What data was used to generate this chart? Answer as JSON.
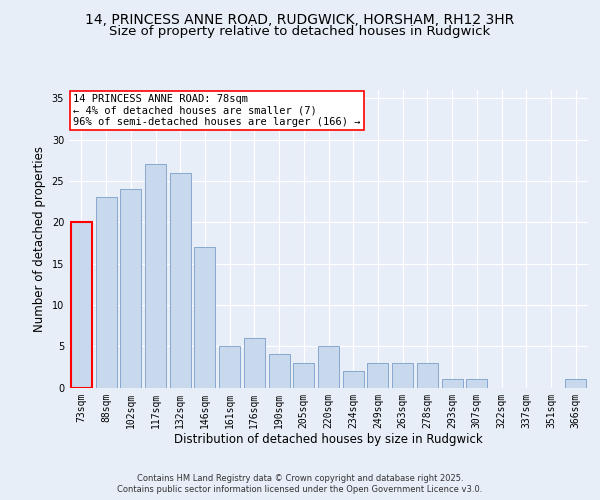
{
  "title_line1": "14, PRINCESS ANNE ROAD, RUDGWICK, HORSHAM, RH12 3HR",
  "title_line2": "Size of property relative to detached houses in Rudgwick",
  "xlabel": "Distribution of detached houses by size in Rudgwick",
  "ylabel": "Number of detached properties",
  "categories": [
    "73sqm",
    "88sqm",
    "102sqm",
    "117sqm",
    "132sqm",
    "146sqm",
    "161sqm",
    "176sqm",
    "190sqm",
    "205sqm",
    "220sqm",
    "234sqm",
    "249sqm",
    "263sqm",
    "278sqm",
    "293sqm",
    "307sqm",
    "322sqm",
    "337sqm",
    "351sqm",
    "366sqm"
  ],
  "values": [
    20,
    23,
    24,
    27,
    26,
    17,
    5,
    6,
    4,
    3,
    5,
    2,
    3,
    3,
    3,
    1,
    1,
    0,
    0,
    0,
    1
  ],
  "bar_color": "#c8d9ee",
  "bar_edge_color": "#7a9ec8",
  "highlight_bar_index": 0,
  "highlight_bar_edge_color": "red",
  "annotation_text": "14 PRINCESS ANNE ROAD: 78sqm\n← 4% of detached houses are smaller (7)\n96% of semi-detached houses are larger (166) →",
  "annotation_box_color": "white",
  "annotation_box_edge_color": "red",
  "ylim": [
    0,
    36
  ],
  "yticks": [
    0,
    5,
    10,
    15,
    20,
    25,
    30,
    35
  ],
  "background_color": "#e8eef8",
  "grid_color": "white",
  "footer_text": "Contains HM Land Registry data © Crown copyright and database right 2025.\nContains public sector information licensed under the Open Government Licence v3.0.",
  "title_fontsize": 10,
  "subtitle_fontsize": 9.5,
  "axis_label_fontsize": 8.5,
  "tick_fontsize": 7,
  "annotation_fontsize": 7.5,
  "footer_fontsize": 6
}
